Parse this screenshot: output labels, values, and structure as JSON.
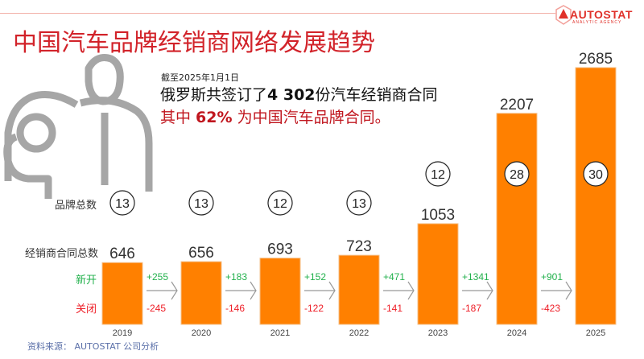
{
  "header": {
    "title": "中国汽车品牌经销商网络发展趋势",
    "logo_name": "AUTOSTAT",
    "logo_sub": "ANALYTIC AGENCY"
  },
  "note": {
    "date": "截至2025年1月1日",
    "main_prefix": "俄罗斯共签订了",
    "main_number": "4 302",
    "main_suffix": "份汽车经销商合同",
    "red_prefix": "其中 ",
    "red_percent": "62%",
    "red_suffix": " 为中国汽车品牌合同。"
  },
  "labels": {
    "brands": "品牌总数",
    "contracts": "经销商合同总数",
    "opened": "新开",
    "closed": "关闭"
  },
  "source": "资料来源：  AUTOSTAT 公司分析",
  "colors": {
    "bar": "#ff8000",
    "title": "#d2232a",
    "opened": "#22b14c",
    "closed": "#ee1c25"
  },
  "chart_data": {
    "type": "bar",
    "categories": [
      "2019",
      "2020",
      "2021",
      "2022",
      "2023",
      "2024",
      "2025"
    ],
    "values": [
      646,
      656,
      693,
      723,
      1053,
      2207,
      2685
    ],
    "brands": [
      13,
      13,
      12,
      13,
      12,
      28,
      30
    ],
    "opened": [
      "+255",
      "+183",
      "+152",
      "+471",
      "+1341",
      "+901"
    ],
    "closed": [
      "-245",
      "-146",
      "-122",
      "-141",
      "-187",
      "-423"
    ],
    "ylim": [
      0,
      2685
    ]
  }
}
